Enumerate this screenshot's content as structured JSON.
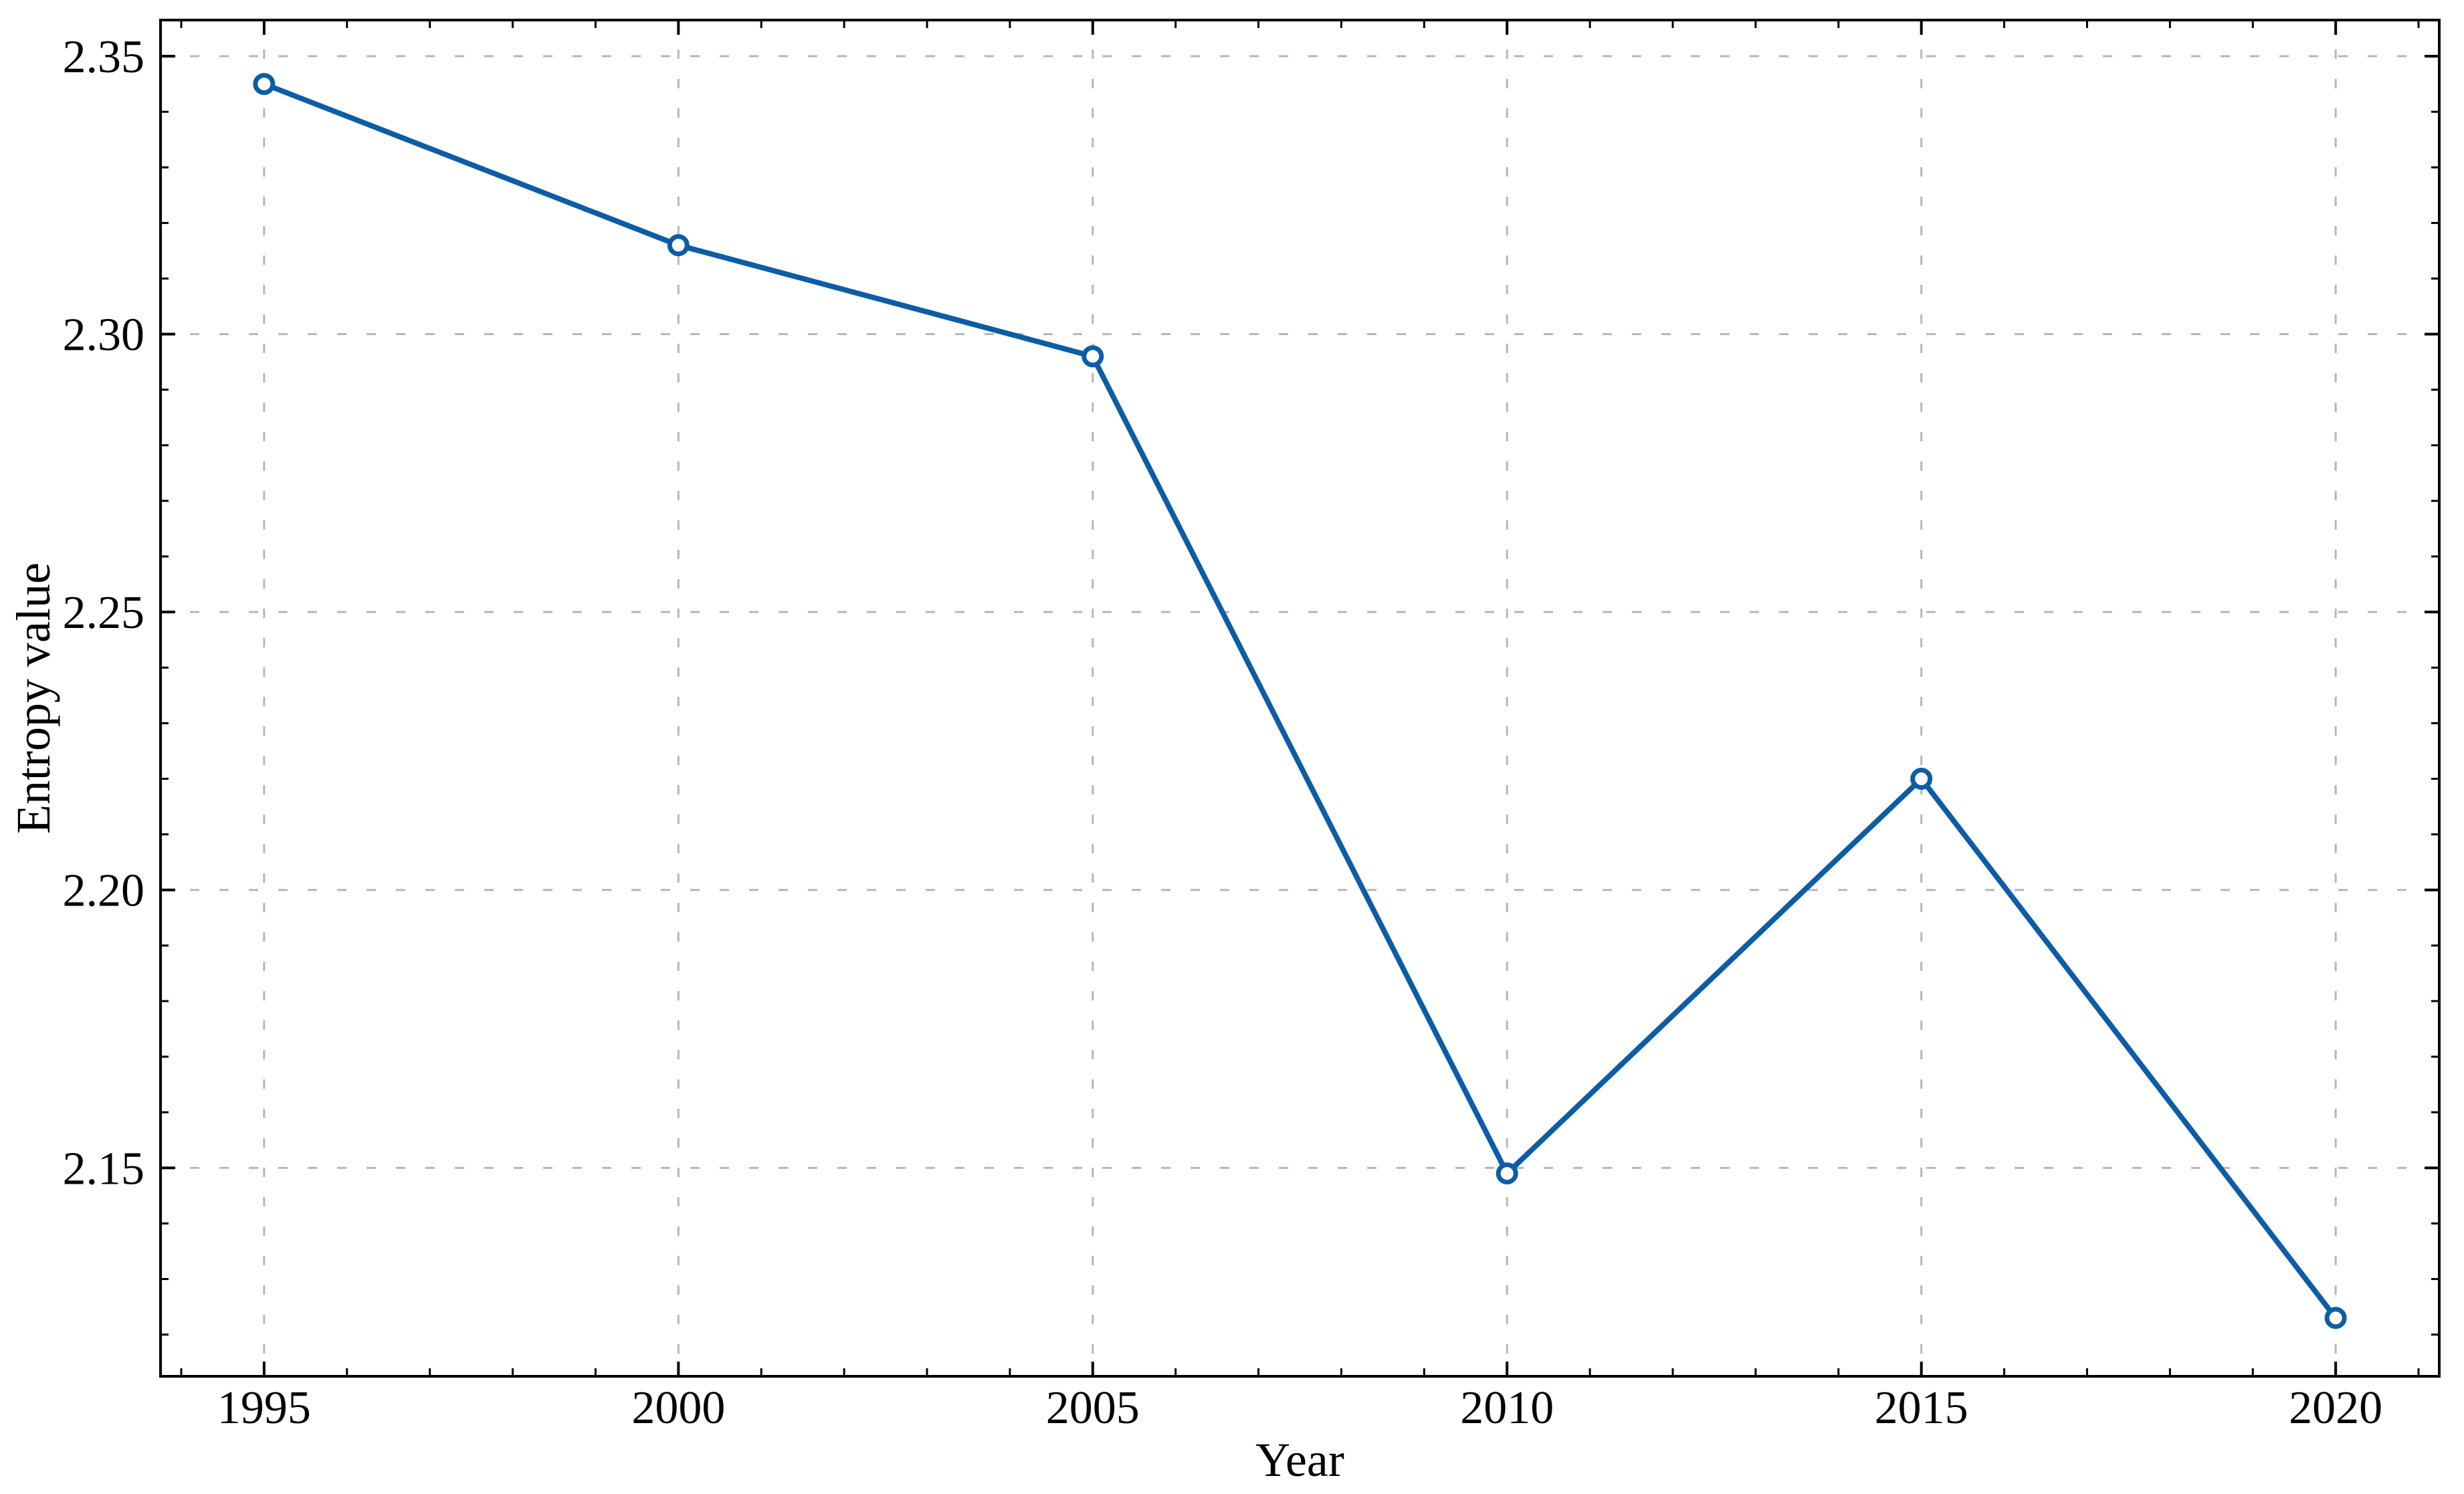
{
  "figure": {
    "background": "#ffffff"
  },
  "chart_data": {
    "type": "line",
    "xlabel": "Year",
    "ylabel": "Entropy value",
    "x": [
      1995,
      2000,
      2005,
      2010,
      2015,
      2020
    ],
    "y": [
      2.345,
      2.316,
      2.296,
      2.149,
      2.22,
      2.123
    ],
    "xlim": [
      1993.75,
      2021.25
    ],
    "ylim": [
      2.1125,
      2.3565
    ],
    "xticks": {
      "values": [
        1995,
        2000,
        2005,
        2010,
        2015,
        2020
      ],
      "labels": [
        "1995",
        "2000",
        "2005",
        "2010",
        "2015",
        "2020"
      ]
    },
    "yticks": {
      "values": [
        2.15,
        2.2,
        2.25,
        2.3,
        2.35
      ],
      "labels": [
        "2.15",
        "2.20",
        "2.25",
        "2.30",
        "2.35"
      ]
    },
    "x_minor_step": 1,
    "y_minor_step": 0.01,
    "grid": true,
    "grid_style": "dashed",
    "legend": false,
    "styles": {
      "line_color": "#0C5DA5",
      "marker": "open-circle",
      "marker_fill": "#ffffff",
      "grid_color": "#b6b6b6",
      "axis_color": "#000000",
      "text_color": "#000000"
    }
  }
}
